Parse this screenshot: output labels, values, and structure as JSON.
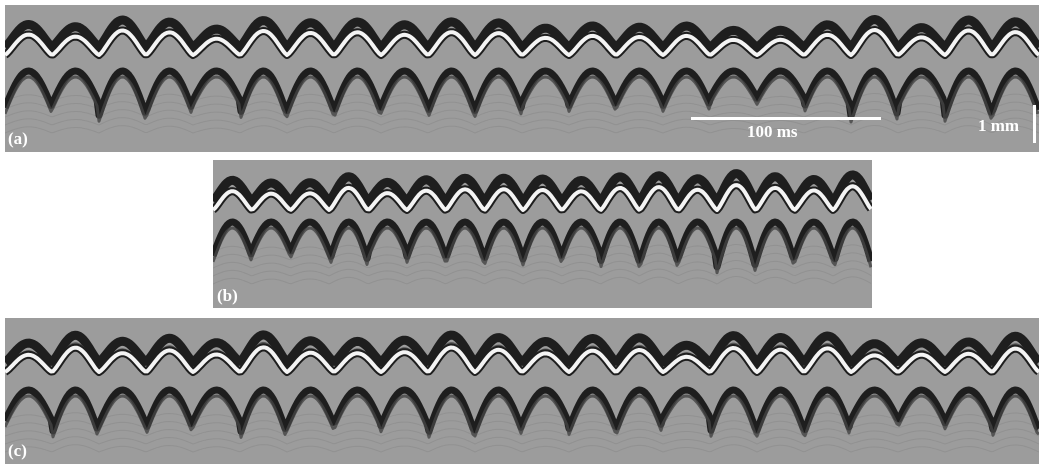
{
  "panels": [
    {
      "label": "(a)",
      "cycles": 22,
      "seed": 1
    },
    {
      "label": "(b)",
      "cycles": 17,
      "seed": 2
    },
    {
      "label": "(c)",
      "cycles": 22,
      "seed": 3
    }
  ],
  "scale_bars": {
    "time": "100 ms",
    "length": "1 mm"
  },
  "colors": {
    "background": "#9c9c9c",
    "dark_band": "#1e1e1e",
    "bright_band": "#f4f4f4",
    "label": "#ffffff"
  }
}
